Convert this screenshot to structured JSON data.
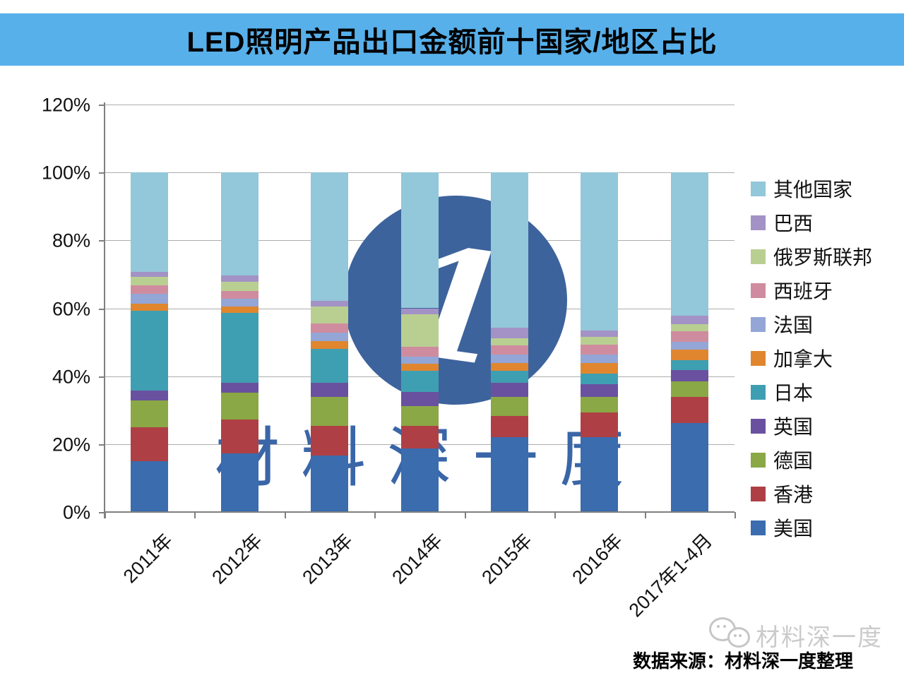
{
  "title": "LED照明产品出口金额前十国家/地区占比",
  "chart_data": {
    "type": "bar",
    "stacked": true,
    "unit": "%",
    "grid": true,
    "legend_position": "right",
    "categories": [
      "2011年",
      "2012年",
      "2013年",
      "2014年",
      "2015年",
      "2016年",
      "2017年1-4月"
    ],
    "y_axis": {
      "min": 0,
      "max": 120,
      "tick_step": 20,
      "tick_labels": [
        "0%",
        "20%",
        "40%",
        "60%",
        "80%",
        "100%",
        "120%"
      ]
    },
    "series_bottom_to_top": [
      {
        "name": "美国",
        "color": "#3a6cae",
        "values": [
          15.0,
          17.3,
          16.6,
          18.7,
          22.1,
          22.1,
          26.3
        ]
      },
      {
        "name": "香港",
        "color": "#ae4045",
        "values": [
          9.9,
          10.0,
          8.7,
          6.6,
          6.2,
          7.3,
          7.6
        ]
      },
      {
        "name": "德国",
        "color": "#8aa845",
        "values": [
          8.0,
          7.8,
          8.7,
          5.9,
          5.5,
          4.5,
          4.5
        ]
      },
      {
        "name": "英国",
        "color": "#6a519f",
        "values": [
          2.9,
          3.0,
          4.0,
          4.2,
          4.2,
          3.8,
          3.5
        ]
      },
      {
        "name": "日本",
        "color": "#3f9fb2",
        "values": [
          23.5,
          20.6,
          10.1,
          6.2,
          3.6,
          3.1,
          2.8
        ]
      },
      {
        "name": "加拿大",
        "color": "#df862f",
        "values": [
          2.1,
          1.9,
          2.3,
          2.1,
          2.3,
          3.0,
          3.1
        ]
      },
      {
        "name": "法国",
        "color": "#93a6d6",
        "values": [
          2.9,
          2.2,
          2.4,
          2.1,
          2.4,
          2.6,
          2.4
        ]
      },
      {
        "name": "西班牙",
        "color": "#cf8c9e",
        "values": [
          2.5,
          2.3,
          2.8,
          2.8,
          2.8,
          2.8,
          3.1
        ]
      },
      {
        "name": "俄罗斯联邦",
        "color": "#b9cf92",
        "values": [
          2.5,
          2.8,
          4.9,
          9.7,
          2.1,
          2.4,
          2.1
        ]
      },
      {
        "name": "巴西",
        "color": "#a392c5",
        "values": [
          1.4,
          1.7,
          1.7,
          1.7,
          3.1,
          1.9,
          2.4
        ]
      },
      {
        "name": "其他国家",
        "color": "#93c7da",
        "values": [
          29.3,
          30.4,
          37.8,
          40.0,
          45.7,
          46.5,
          42.2
        ]
      }
    ],
    "legend_order_top_to_bottom": [
      "其他国家",
      "巴西",
      "俄罗斯联邦",
      "西班牙",
      "法国",
      "加拿大",
      "日本",
      "英国",
      "德国",
      "香港",
      "美国"
    ]
  },
  "watermark": {
    "center_text": "材料深一度",
    "circle_glyph": "1",
    "footer_logo_text": "材料深一度"
  },
  "source_note": "数据来源：材料深一度整理",
  "colors": {
    "title_band": "#57b0ea",
    "watermark_blue": "#3a66a8",
    "circle_blue": "#3d639c",
    "grid": "#adadad",
    "axis": "#7f7f7f"
  }
}
